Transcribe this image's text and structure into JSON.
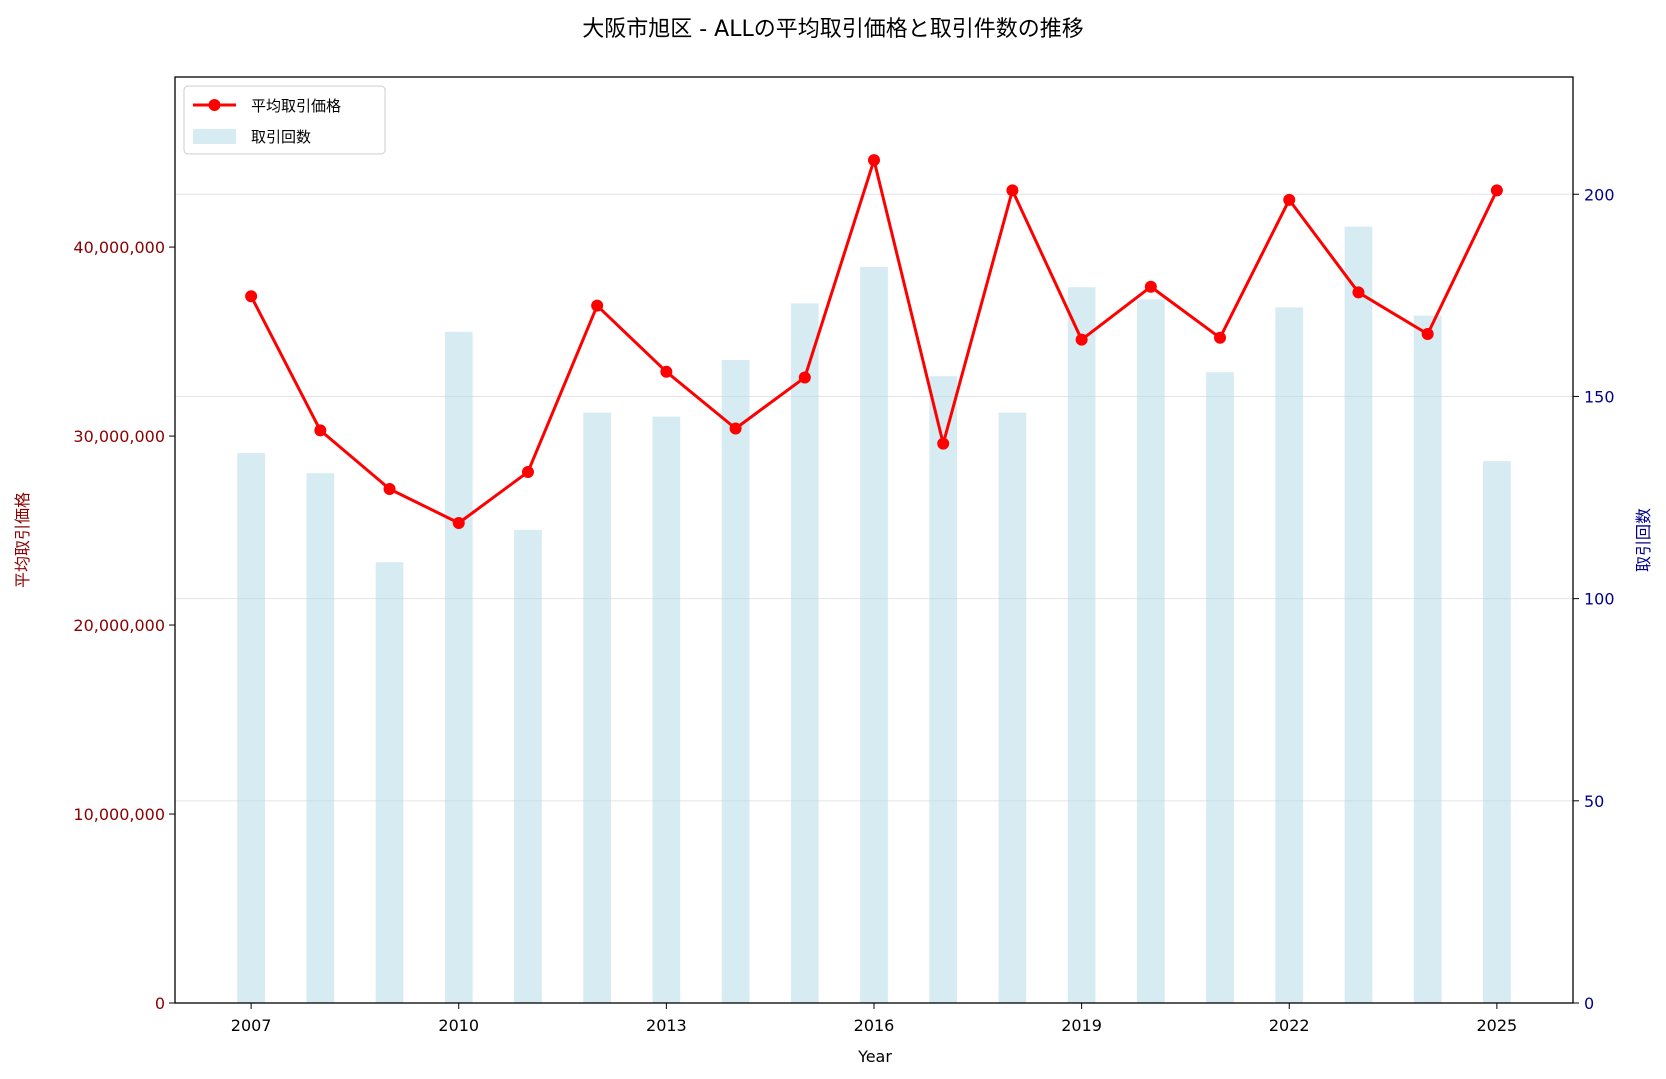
{
  "chart_data": {
    "type": "bar+line",
    "title": "大阪市旭区 - ALLの平均取引価格と取引件数の推移",
    "xlabel": "Year",
    "ylabel_left": "平均取引価格",
    "ylabel_right": "取引回数",
    "x": [
      2007,
      2008,
      2009,
      2010,
      2011,
      2012,
      2013,
      2014,
      2015,
      2016,
      2017,
      2018,
      2019,
      2020,
      2021,
      2022,
      2023,
      2024,
      2025
    ],
    "x_ticks": [
      "2007",
      "2010",
      "2013",
      "2016",
      "2019",
      "2022",
      "2025"
    ],
    "x_range": [
      2005.9,
      2026.1
    ],
    "y_left_ticks": [
      "0",
      "10,000,000",
      "20,000,000",
      "30,000,000",
      "40,000,000"
    ],
    "y_left_range": [
      0,
      49000000
    ],
    "y_right_ticks": [
      "0",
      "50",
      "100",
      "150",
      "200"
    ],
    "y_right_range": [
      0,
      229
    ],
    "grid": "horizontal (right axis)",
    "legend_position": "top-left",
    "series": [
      {
        "name": "平均取引価格",
        "type": "line",
        "axis": "left",
        "color": "#ff0000",
        "values": [
          37400000,
          30300000,
          27200000,
          25400000,
          28100000,
          36900000,
          33400000,
          30400000,
          33100000,
          44600000,
          29600000,
          43000000,
          35100000,
          37900000,
          35200000,
          42500000,
          37600000,
          35400000,
          43000000
        ]
      },
      {
        "name": "取引回数",
        "type": "bar",
        "axis": "right",
        "color": "#add8e6",
        "values": [
          136,
          131,
          109,
          166,
          117,
          146,
          145,
          159,
          173,
          182,
          155,
          146,
          177,
          174,
          156,
          172,
          192,
          170,
          134
        ]
      }
    ],
    "colors": {
      "left_axis": "#8b0000",
      "right_axis": "#00008b",
      "line": "#ff0000",
      "bar": "#add8e6"
    }
  }
}
